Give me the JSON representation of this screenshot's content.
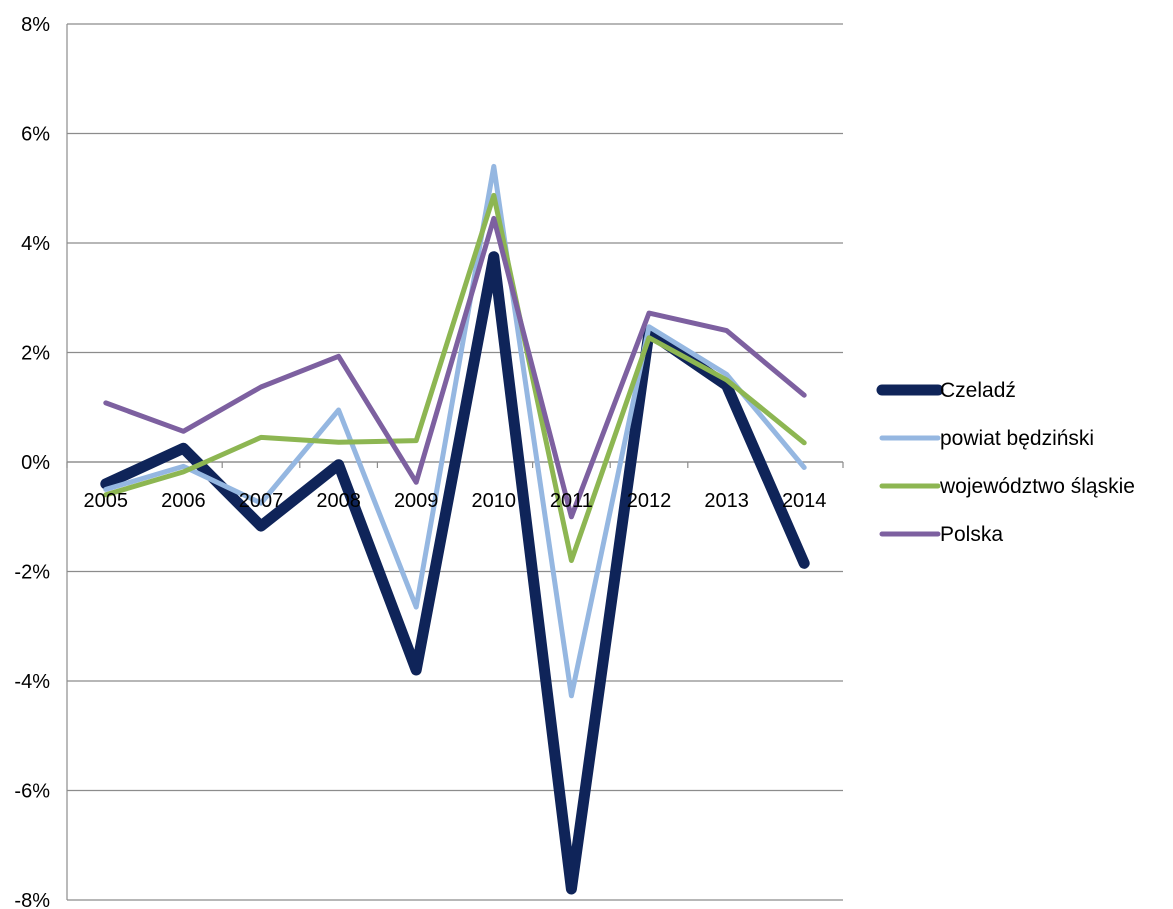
{
  "chart_data": {
    "type": "line",
    "title": "",
    "xlabel": "",
    "ylabel": "",
    "x": [
      "2005",
      "2006",
      "2007",
      "2008",
      "2009",
      "2010",
      "2011",
      "2012",
      "2013",
      "2014"
    ],
    "ylim": [
      -8,
      8
    ],
    "yticks": [
      -8,
      -6,
      -4,
      -2,
      0,
      2,
      4,
      6,
      8
    ],
    "ytick_labels": [
      "-8%",
      "-6%",
      "-4%",
      "-2%",
      "0%",
      "2%",
      "4%",
      "6%",
      "8%"
    ],
    "grid": "horizontal",
    "legend_position": "right",
    "series": [
      {
        "name": "Czeladź",
        "color": "#0f2459",
        "values": [
          -0.4,
          0.25,
          -1.17,
          -0.05,
          -3.8,
          3.75,
          -7.8,
          2.37,
          1.4,
          -1.85
        ]
      },
      {
        "name": "powiat będziński",
        "color": "#95b7e1",
        "values": [
          -0.5,
          -0.08,
          -0.75,
          0.95,
          -2.65,
          5.4,
          -4.27,
          2.47,
          1.6,
          -0.1
        ]
      },
      {
        "name": "województwo śląskie",
        "color": "#8db652",
        "values": [
          -0.6,
          -0.18,
          0.45,
          0.36,
          0.39,
          4.87,
          -1.8,
          2.27,
          1.5,
          0.35
        ]
      },
      {
        "name": "Polska",
        "color": "#7d60a0",
        "values": [
          1.08,
          0.56,
          1.37,
          1.93,
          -0.37,
          4.45,
          -1.0,
          2.72,
          2.4,
          1.22
        ]
      }
    ]
  }
}
